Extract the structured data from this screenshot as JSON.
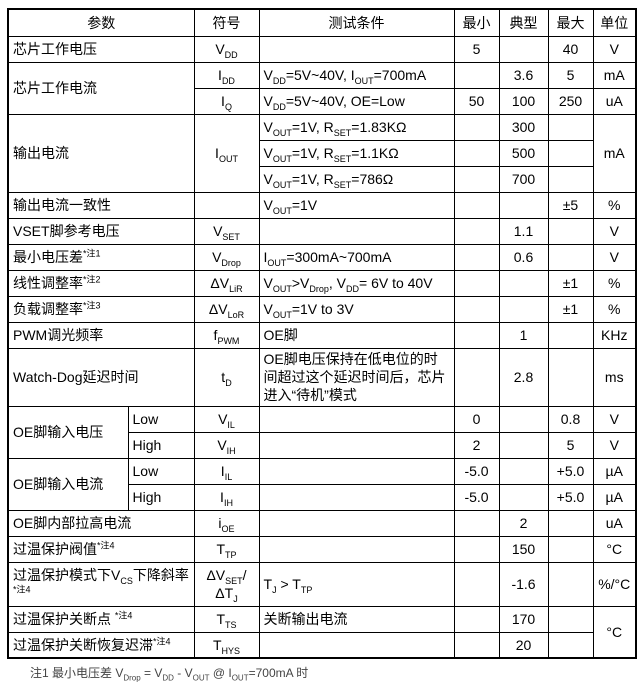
{
  "table": {
    "headers": {
      "param": "参数",
      "symbol": "符号",
      "cond": "测试条件",
      "min": "最小",
      "typ": "典型",
      "max": "最大",
      "unit": "单位"
    },
    "rows": [
      {
        "param": [
          {
            "t": "芯片工作电压"
          }
        ],
        "symbol": [
          {
            "t": "V"
          },
          {
            "sub": "DD"
          }
        ],
        "cond": [],
        "min": "5",
        "typ": "",
        "max": "40",
        "unit": "V"
      },
      {
        "param": [
          {
            "t": "芯片工作电流"
          }
        ],
        "symbol": [
          {
            "t": "I"
          },
          {
            "sub": "DD"
          }
        ],
        "cond": [
          {
            "t": "V"
          },
          {
            "sub": "DD"
          },
          {
            "t": "=5V~40V, I"
          },
          {
            "sub": "OUT"
          },
          {
            "t": "=700mA"
          }
        ],
        "min": "",
        "typ": "3.6",
        "max": "5",
        "unit": "mA"
      },
      {
        "symbol": [
          {
            "t": "I"
          },
          {
            "sub": "Q"
          }
        ],
        "cond": [
          {
            "t": "V"
          },
          {
            "sub": "DD"
          },
          {
            "t": "=5V~40V, OE=Low"
          }
        ],
        "min": "50",
        "typ": "100",
        "max": "250",
        "unit": "uA"
      },
      {
        "param": [
          {
            "t": "输出电流"
          }
        ],
        "symbol": [
          {
            "t": "I"
          },
          {
            "sub": "OUT"
          }
        ],
        "cond": [
          {
            "t": "V"
          },
          {
            "sub": "OUT"
          },
          {
            "t": "=1V, R"
          },
          {
            "sub": "SET"
          },
          {
            "t": "=1.83KΩ"
          }
        ],
        "min": "",
        "typ": "300",
        "max": "",
        "unit": "mA"
      },
      {
        "cond": [
          {
            "t": "V"
          },
          {
            "sub": "OUT"
          },
          {
            "t": "=1V, R"
          },
          {
            "sub": "SET"
          },
          {
            "t": "=1.1KΩ"
          }
        ],
        "min": "",
        "typ": "500",
        "max": ""
      },
      {
        "cond": [
          {
            "t": "V"
          },
          {
            "sub": "OUT"
          },
          {
            "t": "=1V, R"
          },
          {
            "sub": "SET"
          },
          {
            "t": "=786Ω"
          }
        ],
        "min": "",
        "typ": "700",
        "max": ""
      },
      {
        "param": [
          {
            "t": "输出电流一致性"
          }
        ],
        "symbol": [],
        "cond": [
          {
            "t": "V"
          },
          {
            "sub": "OUT"
          },
          {
            "t": "=1V"
          }
        ],
        "min": "",
        "typ": "",
        "max": "±5",
        "unit": "%"
      },
      {
        "param": [
          {
            "t": "VSET脚参考电压"
          }
        ],
        "symbol": [
          {
            "t": "V"
          },
          {
            "sub": "SET"
          }
        ],
        "cond": [],
        "min": "",
        "typ": "1.1",
        "max": "",
        "unit": "V"
      },
      {
        "param": [
          {
            "t": "最小电压差"
          },
          {
            "sup": "*注1"
          }
        ],
        "symbol": [
          {
            "t": "V"
          },
          {
            "sub": "Drop"
          }
        ],
        "cond": [
          {
            "t": "I"
          },
          {
            "sub": "OUT"
          },
          {
            "t": "=300mA~700mA"
          }
        ],
        "min": "",
        "typ": "0.6",
        "max": "",
        "unit": "V"
      },
      {
        "param": [
          {
            "t": "线性调整率"
          },
          {
            "sup": "*注2"
          }
        ],
        "symbol": [
          {
            "t": "ΔV"
          },
          {
            "sub": "LiR"
          }
        ],
        "cond": [
          {
            "t": "V"
          },
          {
            "sub": "OUT"
          },
          {
            "t": ">V"
          },
          {
            "sub": "Drop"
          },
          {
            "t": ", V"
          },
          {
            "sub": "DD"
          },
          {
            "t": "= 6V to 40V"
          }
        ],
        "min": "",
        "typ": "",
        "max": "±1",
        "unit": "%"
      },
      {
        "param": [
          {
            "t": "负载调整率"
          },
          {
            "sup": "*注3"
          }
        ],
        "symbol": [
          {
            "t": "ΔV"
          },
          {
            "sub": "LoR"
          }
        ],
        "cond": [
          {
            "t": "V"
          },
          {
            "sub": "OUT"
          },
          {
            "t": "=1V to 3V"
          }
        ],
        "min": "",
        "typ": "",
        "max": "±1",
        "unit": "%"
      },
      {
        "param": [
          {
            "t": "PWM调光频率"
          }
        ],
        "symbol": [
          {
            "t": "f"
          },
          {
            "sub": "PWM"
          }
        ],
        "cond": [
          {
            "t": "OE脚"
          }
        ],
        "min": "",
        "typ": "1",
        "max": "",
        "unit": "KHz"
      },
      {
        "param": [
          {
            "t": "Watch-Dog延迟时间"
          }
        ],
        "symbol": [
          {
            "t": "t"
          },
          {
            "sub": "D"
          }
        ],
        "cond": [
          {
            "t": "OE脚电压保持在低电位的时间超过这个延迟时间后，芯片进入“待机”模式"
          }
        ],
        "min": "",
        "typ": "2.8",
        "max": "",
        "unit": "ms"
      },
      {
        "param": [
          {
            "t": "OE脚输入电压"
          }
        ],
        "sub": "Low",
        "symbol": [
          {
            "t": "V"
          },
          {
            "sub": "IL"
          }
        ],
        "cond": [],
        "min": "0",
        "typ": "",
        "max": "0.8",
        "unit": "V"
      },
      {
        "sub": "High",
        "symbol": [
          {
            "t": "V"
          },
          {
            "sub": "IH"
          }
        ],
        "cond": [],
        "min": "2",
        "typ": "",
        "max": "5",
        "unit": "V"
      },
      {
        "param": [
          {
            "t": "OE脚输入电流"
          }
        ],
        "sub": "Low",
        "symbol": [
          {
            "t": "I"
          },
          {
            "sub": "IL"
          }
        ],
        "cond": [],
        "min": "-5.0",
        "typ": "",
        "max": "+5.0",
        "unit": "µA"
      },
      {
        "sub": "High",
        "symbol": [
          {
            "t": "I"
          },
          {
            "sub": "IH"
          }
        ],
        "cond": [],
        "min": "-5.0",
        "typ": "",
        "max": "+5.0",
        "unit": "µA"
      },
      {
        "param": [
          {
            "t": "OE脚内部拉高电流"
          }
        ],
        "symbol": [
          {
            "t": "i"
          },
          {
            "sub": "OE"
          }
        ],
        "cond": [],
        "min": "",
        "typ": "2",
        "max": "",
        "unit": "uA"
      },
      {
        "param": [
          {
            "t": "过温保护阀值"
          },
          {
            "sup": "*注4"
          }
        ],
        "symbol": [
          {
            "t": "T"
          },
          {
            "sub": "TP"
          }
        ],
        "cond": [],
        "min": "",
        "typ": "150",
        "max": "",
        "unit": "°C"
      },
      {
        "param": [
          {
            "t": "过温保护模式下V"
          },
          {
            "sub": "CS"
          },
          {
            "t": "下降斜率 "
          },
          {
            "sup": "*注4"
          }
        ],
        "symbol": [
          {
            "t": "ΔV"
          },
          {
            "sub": "SET"
          },
          {
            "t": "/ΔT"
          },
          {
            "sub": "J"
          }
        ],
        "cond": [
          {
            "t": "T"
          },
          {
            "sub": "J"
          },
          {
            "t": " > T"
          },
          {
            "sub": "TP"
          }
        ],
        "min": "",
        "typ": "-1.6",
        "max": "",
        "unit": "%/°C"
      },
      {
        "param": [
          {
            "t": "过温保护关断点 "
          },
          {
            "sup": "*注4"
          }
        ],
        "symbol": [
          {
            "t": "T"
          },
          {
            "sub": "TS"
          }
        ],
        "cond": [
          {
            "t": "关断输出电流"
          }
        ],
        "min": "",
        "typ": "170",
        "max": "",
        "unit": "°C"
      },
      {
        "param": [
          {
            "t": "过温保护关断恢复迟滞"
          },
          {
            "sup": "*注4"
          }
        ],
        "symbol": [
          {
            "t": "T"
          },
          {
            "sub": "HYS"
          }
        ],
        "cond": [],
        "min": "",
        "typ": "20",
        "max": ""
      }
    ]
  },
  "footnote": {
    "parts": [
      {
        "t": "注1 最小电压差 V"
      },
      {
        "sub": "Drop"
      },
      {
        "t": " = V"
      },
      {
        "sub": "DD"
      },
      {
        "t": " - V"
      },
      {
        "sub": "OUT"
      },
      {
        "t": " @ I"
      },
      {
        "sub": "OUT"
      },
      {
        "t": "=700mA 时"
      }
    ]
  }
}
